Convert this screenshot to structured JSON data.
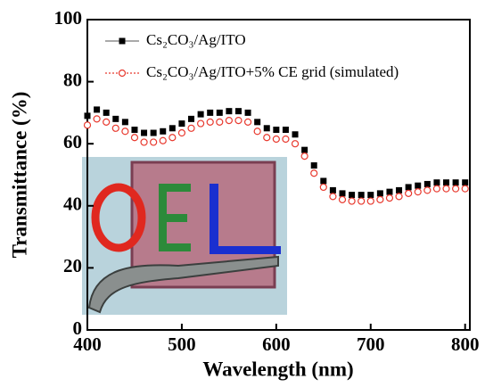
{
  "chart_data": {
    "type": "scatter",
    "xlabel": "Wavelength (nm)",
    "ylabel": "Transmittance (%)",
    "x": [
      400,
      410,
      420,
      430,
      440,
      450,
      460,
      470,
      480,
      490,
      500,
      510,
      520,
      530,
      540,
      550,
      560,
      570,
      580,
      590,
      600,
      610,
      620,
      630,
      640,
      650,
      660,
      670,
      680,
      690,
      700,
      710,
      720,
      730,
      740,
      750,
      760,
      770,
      780,
      790,
      800
    ],
    "series": [
      {
        "name": "Cs₂CO₃/Ag/ITO",
        "color": "#000000",
        "marker": "square",
        "values": [
          69,
          71,
          70,
          68,
          67,
          64.5,
          63.5,
          63.5,
          64,
          65,
          66.5,
          68,
          69.5,
          70,
          70,
          70.5,
          70.5,
          70,
          67,
          65,
          64.5,
          64.5,
          63,
          58,
          53,
          48,
          45,
          44,
          43.5,
          43.5,
          43.5,
          44,
          44.5,
          45,
          46,
          46.5,
          47,
          47.5,
          47.5,
          47.5,
          47.5
        ]
      },
      {
        "name": "Cs₂CO₃/Ag/ITO+5% CE grid (simulated)",
        "color": "#e8392e",
        "marker": "circle",
        "values": [
          66,
          68,
          67,
          65,
          64,
          62,
          60.5,
          60.5,
          61,
          62,
          63.5,
          65,
          66.5,
          67,
          67,
          67.5,
          67.5,
          67,
          64,
          62,
          61.5,
          61.5,
          60,
          56,
          50.5,
          46,
          43,
          42,
          41.5,
          41.5,
          41.5,
          42,
          42.5,
          43,
          44,
          44.5,
          45,
          45.5,
          45.5,
          45.5,
          45.5
        ]
      }
    ],
    "xlim": [
      400,
      805
    ],
    "xticks": [
      400,
      500,
      600,
      700,
      800
    ],
    "ylim": [
      0,
      100
    ],
    "yticks": [
      0,
      20,
      40,
      60,
      80,
      100
    ],
    "legend": "upper left"
  }
}
